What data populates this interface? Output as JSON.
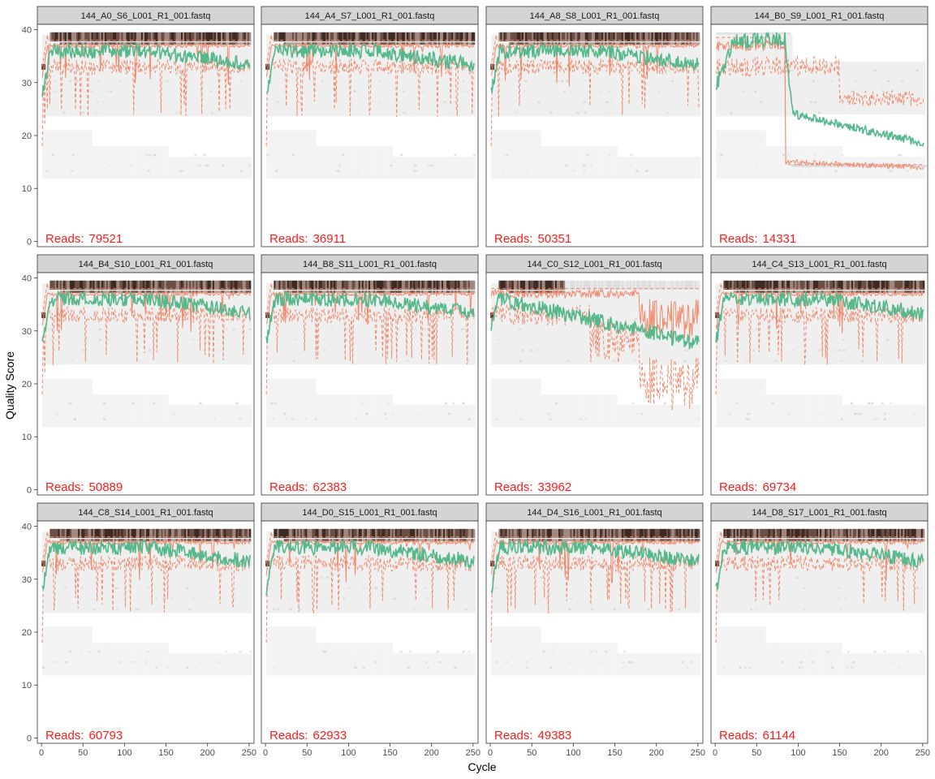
{
  "figure": {
    "xlabel": "Cycle",
    "ylabel": "Quality Score",
    "colors": {
      "mean_line": "#55b88b",
      "quantile_line": "#f0886a",
      "reads_text": "#ff1a1a",
      "strip_bg": "#d4d4d4",
      "panel_border": "#333333",
      "heat_low": "#f2f2f2",
      "heat_high": "#2b1d17"
    }
  },
  "chart_data": {
    "type": "heatmap",
    "facet_layout": "3 rows x 4 columns",
    "xlim": [
      -5,
      256
    ],
    "ylim": [
      -1,
      41
    ],
    "x_ticks": [
      0,
      50,
      100,
      150,
      200,
      250
    ],
    "y_ticks": [
      0,
      10,
      20,
      30,
      40
    ],
    "legend": "none",
    "grid": false,
    "panels": [
      {
        "title": "144_A0_S6_L001_R1_001.fastq",
        "reads_label": "Reads:",
        "reads": "79521",
        "profile": "good"
      },
      {
        "title": "144_A4_S7_L001_R1_001.fastq",
        "reads_label": "Reads:",
        "reads": "36911",
        "profile": "good"
      },
      {
        "title": "144_A8_S8_L001_R1_001.fastq",
        "reads_label": "Reads:",
        "reads": "50351",
        "profile": "good"
      },
      {
        "title": "144_B0_S9_L001_R1_001.fastq",
        "reads_label": "Reads:",
        "reads": "14331",
        "profile": "drop"
      },
      {
        "title": "144_B4_S10_L001_R1_001.fastq",
        "reads_label": "Reads:",
        "reads": "50889",
        "profile": "good"
      },
      {
        "title": "144_B8_S11_L001_R1_001.fastq",
        "reads_label": "Reads:",
        "reads": "62383",
        "profile": "good"
      },
      {
        "title": "144_C0_S12_L001_R1_001.fastq",
        "reads_label": "Reads:",
        "reads": "33962",
        "profile": "decline"
      },
      {
        "title": "144_C4_S13_L001_R1_001.fastq",
        "reads_label": "Reads:",
        "reads": "69734",
        "profile": "good"
      },
      {
        "title": "144_C8_S14_L001_R1_001.fastq",
        "reads_label": "Reads:",
        "reads": "60793",
        "profile": "good"
      },
      {
        "title": "144_D0_S15_L001_R1_001.fastq",
        "reads_label": "Reads:",
        "reads": "62933",
        "profile": "good"
      },
      {
        "title": "144_D4_S16_L001_R1_001.fastq",
        "reads_label": "Reads:",
        "reads": "49383",
        "profile": "good"
      },
      {
        "title": "144_D8_S17_L001_R1_001.fastq",
        "reads_label": "Reads:",
        "reads": "61144",
        "profile": "good"
      }
    ]
  }
}
